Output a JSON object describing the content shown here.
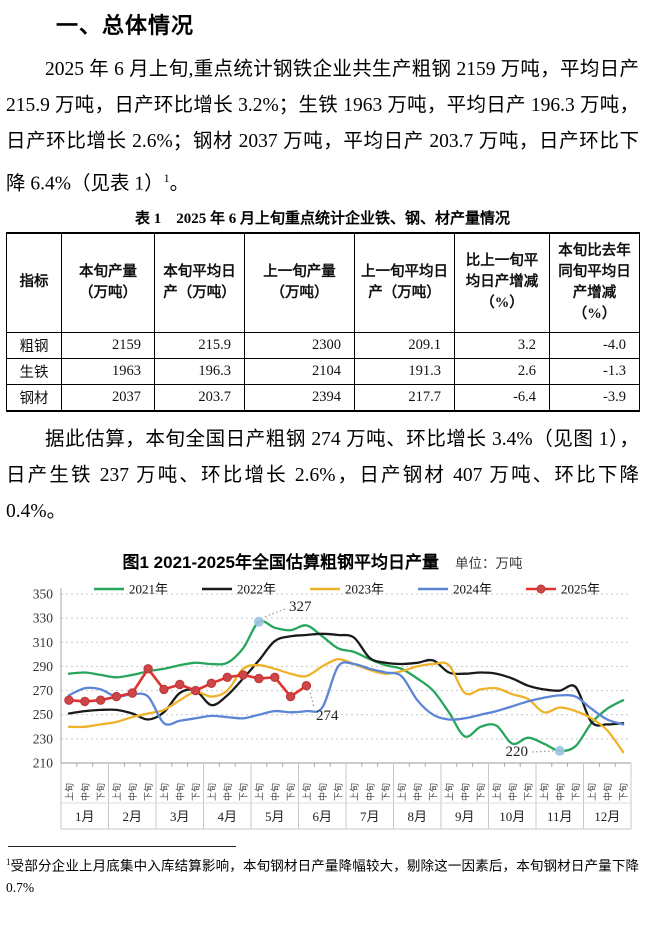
{
  "page": {
    "heading": "一、总体情况",
    "paragraph1_main": "2025 年 6 月上旬,重点统计钢铁企业共生产粗钢 2159 万吨，平均日产 215.9 万吨，日产环比增长 3.2%；生铁 1963 万吨，平均日产 196.3 万吨，日产环比增长 2.6%；钢材 2037 万吨，平均日产 203.7 万吨，日产环比下降 6.4%（见表 1）",
    "paragraph1_sup": "1",
    "paragraph1_tail": "。",
    "paragraph2": "据此估算，本旬全国日产粗钢 274 万吨、环比增长 3.4%（见图 1），日产生铁 237 万吨、环比增长 2.6%，日产钢材 407 万吨、环比下降 0.4%。",
    "footnote_sup": "1",
    "footnote_text": "受部分企业上月底集中入库结算影响，本旬钢材日产量降幅较大，剔除这一因素后，本旬钢材日产量下降 0.7%"
  },
  "table": {
    "title": "表 1　2025 年 6 月上旬重点统计企业铁、钢、材产量情况",
    "headers": [
      "指标",
      "本旬产量（万吨）",
      "本旬平均日产（万吨）",
      "上一旬产量（万吨）",
      "上一旬平均日产（万吨）",
      "比上一旬平均日产增减（%）",
      "本旬比去年同旬平均日产增减（%）"
    ],
    "rows": [
      [
        "粗钢",
        "2159",
        "215.9",
        "2300",
        "209.1",
        "3.2",
        "-4.0"
      ],
      [
        "生铁",
        "1963",
        "196.3",
        "2104",
        "191.3",
        "2.6",
        "-1.3"
      ],
      [
        "钢材",
        "2037",
        "203.7",
        "2394",
        "217.7",
        "-6.4",
        "-3.9"
      ]
    ]
  },
  "chart": {
    "title": "图1 2021-2025年全国估算粗钢平均日产量",
    "unit_label": "单位：万吨"
  },
  "chart_data": {
    "type": "line",
    "title": "图1 2021-2025年全国估算粗钢平均日产量",
    "ylabel": "万吨",
    "ylim": [
      210,
      350
    ],
    "ytick_step": 20,
    "grid": "horizontal-dotted",
    "legend_position": "top",
    "months": [
      "1月",
      "2月",
      "3月",
      "4月",
      "5月",
      "6月",
      "7月",
      "8月",
      "9月",
      "10月",
      "11月",
      "12月"
    ],
    "tendays": [
      "上旬",
      "中旬",
      "下旬"
    ],
    "series": [
      {
        "name": "2021年",
        "color": "#27A65B",
        "marker": "none",
        "values": [
          284,
          285,
          283,
          281,
          283,
          286,
          288,
          291,
          293,
          292,
          293,
          305,
          327,
          322,
          320,
          324,
          315,
          305,
          302,
          296,
          291,
          288,
          280,
          270,
          252,
          232,
          240,
          241,
          226,
          231,
          226,
          220,
          224,
          243,
          255,
          262
        ]
      },
      {
        "name": "2022年",
        "color": "#1A1A1A",
        "marker": "none",
        "values": [
          251,
          253,
          254,
          254,
          251,
          246,
          252,
          268,
          270,
          258,
          266,
          280,
          295,
          311,
          315,
          316,
          317,
          316,
          314,
          297,
          293,
          292,
          293,
          295,
          285,
          284,
          285,
          284,
          280,
          274,
          271,
          270,
          273,
          244,
          242,
          243
        ]
      },
      {
        "name": "2023年",
        "color": "#EFB32A",
        "marker": "none",
        "values": [
          240,
          240,
          242,
          244,
          248,
          251,
          254,
          262,
          269,
          265,
          270,
          288,
          291,
          288,
          284,
          282,
          290,
          296,
          292,
          287,
          284,
          286,
          290,
          292,
          291,
          268,
          271,
          272,
          267,
          263,
          252,
          256,
          253,
          247,
          237,
          219
        ]
      },
      {
        "name": "2024年",
        "color": "#5C85D6",
        "marker": "none",
        "values": [
          266,
          272,
          271,
          265,
          267,
          265,
          243,
          245,
          247,
          249,
          248,
          247,
          250,
          253,
          252,
          253,
          256,
          290,
          292,
          288,
          285,
          282,
          262,
          250,
          246,
          247,
          250,
          253,
          257,
          261,
          264,
          266,
          265,
          255,
          246,
          242
        ]
      },
      {
        "name": "2025年",
        "color": "#E2312E",
        "marker": "circle",
        "values": [
          262,
          261,
          262,
          265,
          268,
          288,
          271,
          275,
          270,
          276,
          281,
          283,
          280,
          281,
          265,
          274
        ]
      }
    ],
    "annotations": [
      {
        "label": "327",
        "series": "2021年",
        "index": 12,
        "value": 327,
        "dot": true
      },
      {
        "label": "274",
        "series": "2025年",
        "index": 15,
        "value": 274,
        "dot": false
      },
      {
        "label": "220",
        "series": "2021年",
        "index": 31,
        "value": 220,
        "dot": true
      }
    ]
  }
}
